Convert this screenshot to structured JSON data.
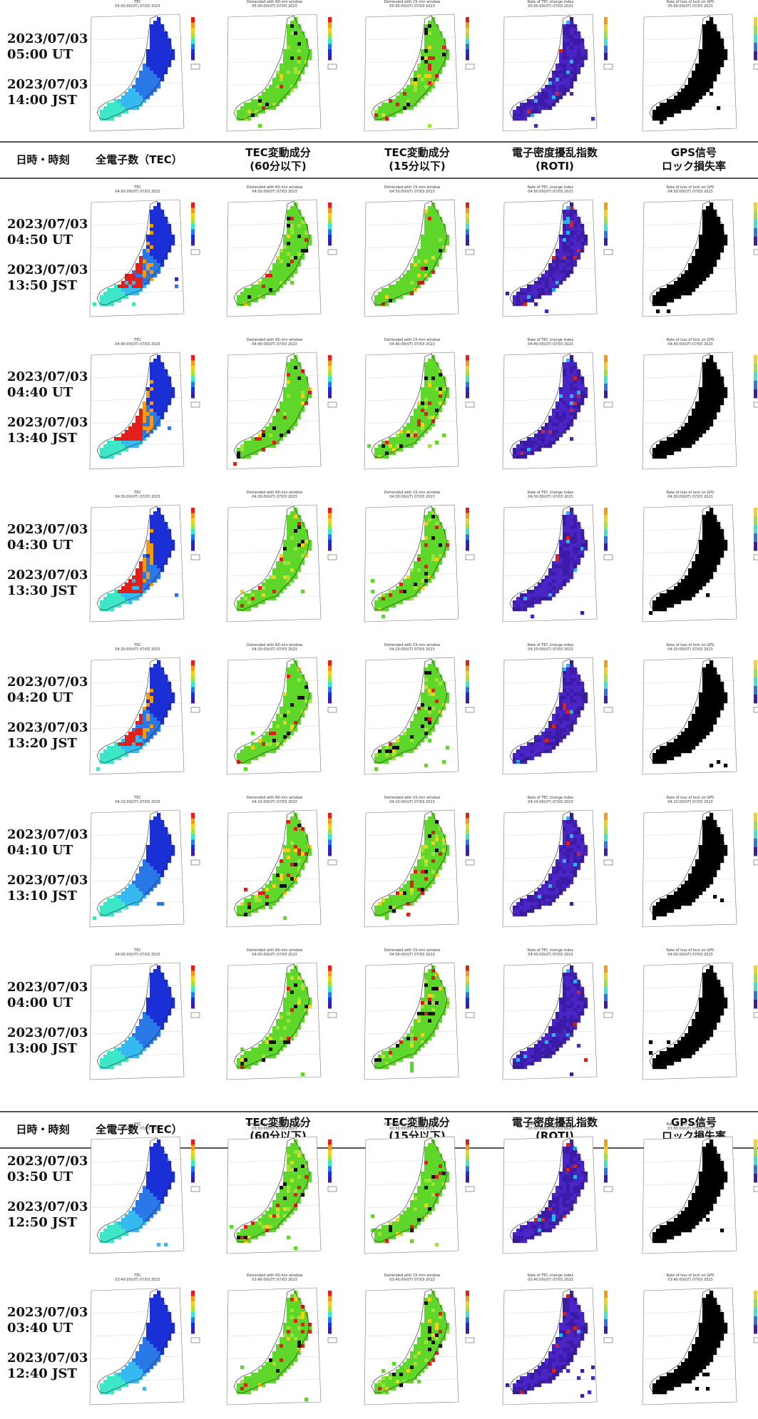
{
  "header": {
    "col_datetime": "日時・時刻",
    "col_tec": "全電子数（TEC）",
    "col_tec60_line1": "TEC変動成分",
    "col_tec60_line2": "(60分以下)",
    "col_tec15_line1": "TEC変動成分",
    "col_tec15_line2": "(15分以下)",
    "col_roti_line1": "電子密度擾乱指数",
    "col_roti_line2": "(ROTI)",
    "col_lock_line1": "GPS信号",
    "col_lock_line2": "ロック損失率"
  },
  "panel_types": [
    {
      "key": "tec",
      "title": "TEC",
      "scheme": "tec"
    },
    {
      "key": "d60",
      "title": "Detrended with 60-min window",
      "scheme": "detrend60"
    },
    {
      "key": "d15",
      "title": "Detrended with 15-min window",
      "scheme": "detrend15"
    },
    {
      "key": "roti",
      "title": "Rate of TEC change index",
      "scheme": "roti"
    },
    {
      "key": "lock",
      "title": "Rate of loss of lock on GPS",
      "scheme": "lock"
    }
  ],
  "rows": [
    {
      "ut_date": "2023/07/03",
      "ut_time": "05:00 UT",
      "jst_date": "2023/07/03",
      "jst_time": "14:00 JST",
      "stamp": "05:00:00(UT) 07/03 2023",
      "tec_level": 0.35
    },
    {
      "ut_date": "2023/07/03",
      "ut_time": "04:50 UT",
      "jst_date": "2023/07/03",
      "jst_time": "13:50 JST",
      "stamp": "04:50:00(UT) 07/03 2023",
      "tec_level": 0.9
    },
    {
      "ut_date": "2023/07/03",
      "ut_time": "04:40 UT",
      "jst_date": "2023/07/03",
      "jst_time": "13:40 JST",
      "stamp": "04:40:00(UT) 07/03 2023",
      "tec_level": 0.95
    },
    {
      "ut_date": "2023/07/03",
      "ut_time": "04:30 UT",
      "jst_date": "2023/07/03",
      "jst_time": "13:30 JST",
      "stamp": "04:30:00(UT) 07/03 2023",
      "tec_level": 0.85
    },
    {
      "ut_date": "2023/07/03",
      "ut_time": "04:20 UT",
      "jst_date": "2023/07/03",
      "jst_time": "13:20 JST",
      "stamp": "04:20:00(UT) 07/03 2023",
      "tec_level": 0.7
    },
    {
      "ut_date": "2023/07/03",
      "ut_time": "04:10 UT",
      "jst_date": "2023/07/03",
      "jst_time": "13:10 JST",
      "stamp": "04:10:00(UT) 07/03 2023",
      "tec_level": 0.3
    },
    {
      "ut_date": "2023/07/03",
      "ut_time": "04:00 UT",
      "jst_date": "2023/07/03",
      "jst_time": "13:00 JST",
      "stamp": "04:00:00(UT) 07/03 2023",
      "tec_level": 0.25
    },
    {
      "ut_date": "2023/07/03",
      "ut_time": "03:50 UT",
      "jst_date": "2023/07/03",
      "jst_time": "12:50 JST",
      "stamp": "03:50:00(UT) 07/03 2023",
      "tec_level": 0.3
    },
    {
      "ut_date": "2023/07/03",
      "ut_time": "03:40 UT",
      "jst_date": "2023/07/03",
      "jst_time": "12:40 JST",
      "stamp": "03:40:00(UT) 07/03 2023",
      "tec_level": 0.3
    }
  ]
}
